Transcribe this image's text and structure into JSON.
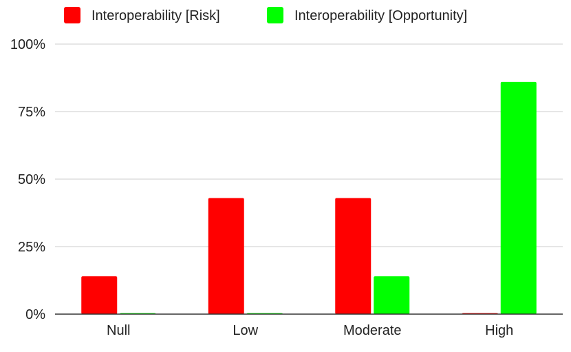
{
  "chart_data": {
    "type": "bar",
    "title": "",
    "xlabel": "",
    "ylabel": "",
    "categories": [
      "Null",
      "Low",
      "Moderate",
      "High"
    ],
    "series": [
      {
        "name": "Interoperability [Risk]",
        "color": "#ff0000",
        "values": [
          14,
          43,
          43,
          0
        ]
      },
      {
        "name": "Interoperability [Opportunity]",
        "color": "#00ff00",
        "values": [
          0,
          0,
          14,
          86
        ]
      }
    ],
    "ylim": [
      0,
      100
    ],
    "y_ticks": [
      "0%",
      "25%",
      "50%",
      "75%",
      "100%"
    ],
    "y_tick_values": [
      0,
      25,
      50,
      75,
      100
    ],
    "grid": true,
    "legend_position": "top"
  }
}
